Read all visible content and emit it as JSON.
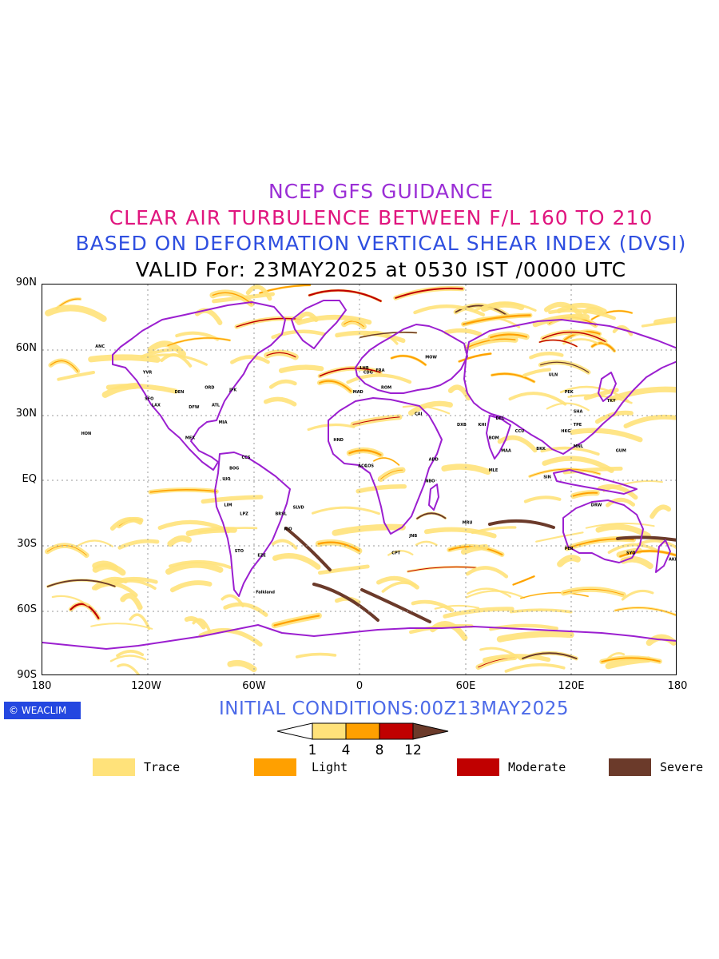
{
  "header": {
    "line1": "NCEP GFS GUIDANCE",
    "line2": "CLEAR AIR TURBULENCE BETWEEN F/L 160 TO 210",
    "line3": "BASED ON DEFORMATION VERTICAL SHEAR INDEX (DVSI)",
    "line4": "VALID For: 23MAY2025 at 0530 IST /0000 UTC"
  },
  "colors": {
    "line1": "#9b2fd6",
    "line2": "#e0157e",
    "line3": "#2f4fe0",
    "line4": "#000000",
    "coast": "#9b1fd0",
    "trace": "#ffe27a",
    "light": "#ffa000",
    "moderate": "#c00000",
    "severe": "#6b3a2a"
  },
  "map": {
    "lat_labels": [
      "90N",
      "60N",
      "30N",
      "EQ",
      "30S",
      "60S",
      "90S"
    ],
    "lon_labels": [
      "180",
      "120W",
      "60W",
      "0",
      "60E",
      "120E",
      "180"
    ],
    "places": [
      {
        "name": "ANC",
        "lon": -150,
        "lat": 61
      },
      {
        "name": "YVR",
        "lon": -123,
        "lat": 49
      },
      {
        "name": "SFO",
        "lon": -122,
        "lat": 37
      },
      {
        "name": "LAX",
        "lon": -118,
        "lat": 34
      },
      {
        "name": "DEN",
        "lon": -105,
        "lat": 40
      },
      {
        "name": "DFW",
        "lon": -97,
        "lat": 33
      },
      {
        "name": "ORD",
        "lon": -88,
        "lat": 42
      },
      {
        "name": "ATL",
        "lon": -84,
        "lat": 34
      },
      {
        "name": "JFK",
        "lon": -74,
        "lat": 41
      },
      {
        "name": "MIA",
        "lon": -80,
        "lat": 26
      },
      {
        "name": "MEX",
        "lon": -99,
        "lat": 19
      },
      {
        "name": "HON",
        "lon": -158,
        "lat": 21
      },
      {
        "name": "BOG",
        "lon": -74,
        "lat": 5
      },
      {
        "name": "CCS",
        "lon": -67,
        "lat": 10
      },
      {
        "name": "UIO",
        "lon": -78,
        "lat": 0
      },
      {
        "name": "LIM",
        "lon": -77,
        "lat": -12
      },
      {
        "name": "LPZ",
        "lon": -68,
        "lat": -16
      },
      {
        "name": "BRSL",
        "lon": -48,
        "lat": -16
      },
      {
        "name": "SLVD",
        "lon": -38,
        "lat": -13
      },
      {
        "name": "RIO",
        "lon": -43,
        "lat": -23
      },
      {
        "name": "STO",
        "lon": -71,
        "lat": -33
      },
      {
        "name": "EZE",
        "lon": -58,
        "lat": -35
      },
      {
        "name": "Falkland",
        "lon": -59,
        "lat": -52
      },
      {
        "name": "LHR",
        "lon": 0,
        "lat": 51
      },
      {
        "name": "CDG",
        "lon": 2,
        "lat": 49
      },
      {
        "name": "FRA",
        "lon": 9,
        "lat": 50
      },
      {
        "name": "MAD",
        "lon": -4,
        "lat": 40
      },
      {
        "name": "ROM",
        "lon": 12,
        "lat": 42
      },
      {
        "name": "MOW",
        "lon": 37,
        "lat": 56
      },
      {
        "name": "CAI",
        "lon": 31,
        "lat": 30
      },
      {
        "name": "ADD",
        "lon": 39,
        "lat": 9
      },
      {
        "name": "NBO",
        "lon": 37,
        "lat": -1
      },
      {
        "name": "JNB",
        "lon": 28,
        "lat": -26
      },
      {
        "name": "CPT",
        "lon": 18,
        "lat": -34
      },
      {
        "name": "DXB",
        "lon": 55,
        "lat": 25
      },
      {
        "name": "KHI",
        "lon": 67,
        "lat": 25
      },
      {
        "name": "DEL",
        "lon": 77,
        "lat": 28
      },
      {
        "name": "BOM",
        "lon": 73,
        "lat": 19
      },
      {
        "name": "MAA",
        "lon": 80,
        "lat": 13
      },
      {
        "name": "CCU",
        "lon": 88,
        "lat": 22
      },
      {
        "name": "MLE",
        "lon": 73,
        "lat": 4
      },
      {
        "name": "BKK",
        "lon": 100,
        "lat": 14
      },
      {
        "name": "SIN",
        "lon": 104,
        "lat": 1
      },
      {
        "name": "HKG",
        "lon": 114,
        "lat": 22
      },
      {
        "name": "PEK",
        "lon": 116,
        "lat": 40
      },
      {
        "name": "SHA",
        "lon": 121,
        "lat": 31
      },
      {
        "name": "TPE",
        "lon": 121,
        "lat": 25
      },
      {
        "name": "TKY",
        "lon": 140,
        "lat": 36
      },
      {
        "name": "ULN",
        "lon": 107,
        "lat": 48
      },
      {
        "name": "GUM",
        "lon": 145,
        "lat": 13
      },
      {
        "name": "PER",
        "lon": 116,
        "lat": -32
      },
      {
        "name": "DRW",
        "lon": 131,
        "lat": -12
      },
      {
        "name": "SYD",
        "lon": 151,
        "lat": -34
      },
      {
        "name": "AKL",
        "lon": 175,
        "lat": -37
      },
      {
        "name": "HND",
        "lon": -15,
        "lat": 18
      },
      {
        "name": "ACC",
        "lon": -1,
        "lat": 6
      },
      {
        "name": "LOS",
        "lon": 3,
        "lat": 6
      },
      {
        "name": "MRU",
        "lon": 58,
        "lat": -20
      },
      {
        "name": "MNL",
        "lon": 121,
        "lat": 15
      }
    ]
  },
  "footer": {
    "logo_text": "WEACLIM",
    "initial_conditions": "INITIAL CONDITIONS:00Z13MAY2025"
  },
  "colorbar": {
    "ticks": [
      "1",
      "4",
      "8",
      "12"
    ]
  },
  "legend": [
    {
      "label": "Trace",
      "color": "#ffe27a"
    },
    {
      "label": "Light",
      "color": "#ffa000"
    },
    {
      "label": "Moderate",
      "color": "#c00000"
    },
    {
      "label": "Severe",
      "color": "#6b3a2a"
    }
  ]
}
